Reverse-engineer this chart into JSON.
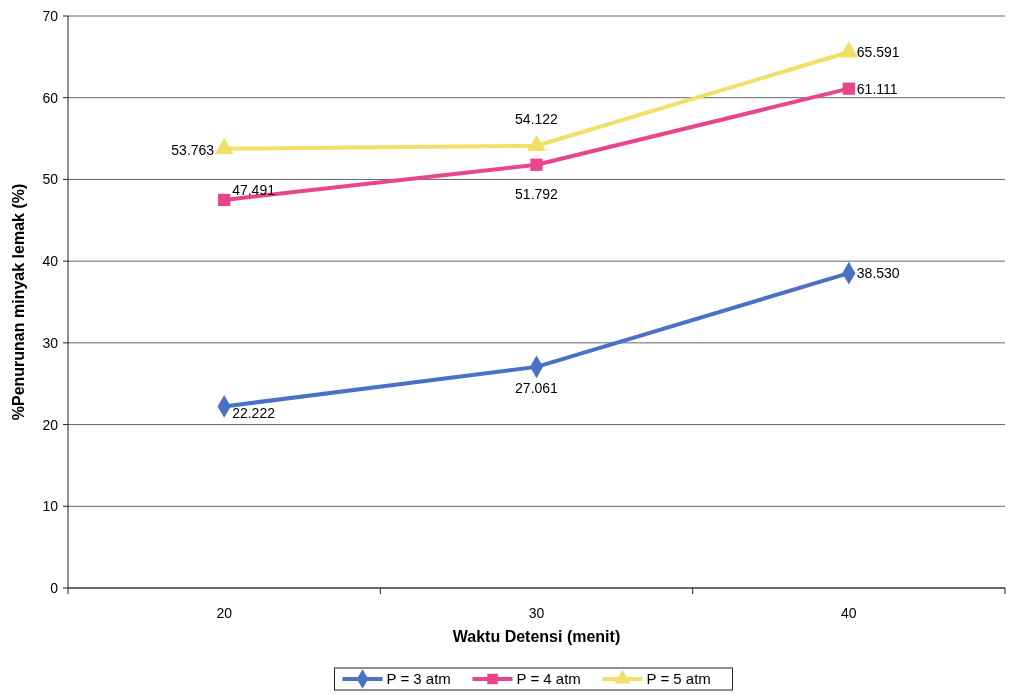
{
  "chart_data": {
    "type": "line",
    "xlabel": "Waktu Detensi (menit)",
    "ylabel": "%Penurunan minyak lemak (%)",
    "categories": [
      "20",
      "30",
      "40"
    ],
    "ylim": [
      0,
      70
    ],
    "yticks": [
      0,
      10,
      20,
      30,
      40,
      50,
      60,
      70
    ],
    "grid": "y",
    "legend": "bottom",
    "series": [
      {
        "name": "P = 3 atm",
        "color": "#4a72c4",
        "marker": "diamond",
        "values": [
          22.222,
          27.061,
          38.53
        ],
        "value_labels": [
          "22.222",
          "27.061",
          "38.530"
        ]
      },
      {
        "name": "P = 4 atm",
        "color": "#e8458b",
        "marker": "square",
        "values": [
          47.491,
          51.792,
          61.111
        ],
        "value_labels": [
          "47.491",
          "51.792",
          "61.111"
        ]
      },
      {
        "name": "P = 5 atm",
        "color": "#f0e068",
        "marker": "triangle",
        "values": [
          53.763,
          54.122,
          65.591
        ],
        "value_labels": [
          "53.763",
          "54.122",
          "65.591"
        ]
      }
    ]
  }
}
